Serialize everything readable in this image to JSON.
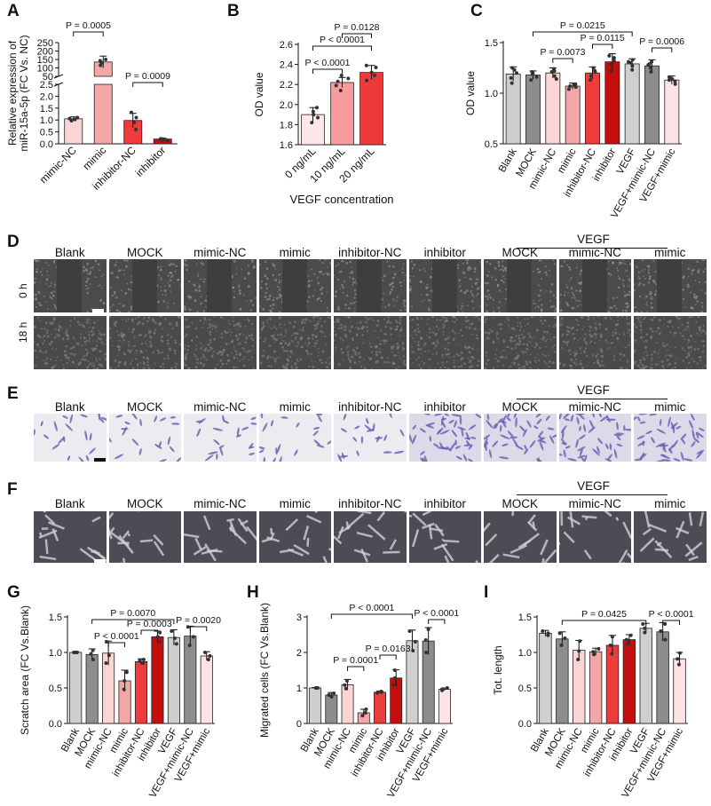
{
  "panel_letters": {
    "A": "A",
    "B": "B",
    "C": "C",
    "D": "D",
    "E": "E",
    "F": "F",
    "G": "G",
    "H": "H",
    "I": "I"
  },
  "colors": {
    "nc": "#fbd4d4",
    "mimic": "#f4a7a7",
    "inhibitor_nc": "#ee3b3b",
    "inhibitor": "#c40e0e",
    "blank": "#cfcfcf",
    "mock": "#8d8d8d",
    "b0": "#fde7e7",
    "b10": "#f69c9c",
    "b20": "#ee3a3a",
    "vegf_mimic": "#fde3e3"
  },
  "image_panels": {
    "columns": [
      "Blank",
      "MOCK",
      "mimic-NC",
      "mimic",
      "inhibitor-NC",
      "inhibitor",
      "MOCK",
      "mimic-NC",
      "mimic"
    ],
    "vegf_label": "VEGF",
    "D_rows": [
      "0 h",
      "18 h"
    ]
  },
  "chart_data": [
    {
      "id": "A",
      "type": "bar",
      "ylabel": "Relative expression of miR-15a-5p (FC Vs. NC)",
      "categories": [
        "mimic-NC",
        "mimic",
        "inhibitor-NC",
        "inhibitor"
      ],
      "values": [
        1.05,
        135,
        0.98,
        0.2
      ],
      "errors": [
        0.08,
        35,
        0.3,
        0.04
      ],
      "points": [
        [
          1.02,
          1.1,
          0.97,
          1.06
        ],
        [
          115,
          150,
          142,
          130
        ],
        [
          0.6,
          1.32,
          0.9,
          1.1
        ],
        [
          0.15,
          0.2,
          0.21,
          0.17
        ]
      ],
      "broken_axis": true,
      "ylim_lower": [
        0,
        2.5
      ],
      "yticks_lower": [
        "0.0",
        "0.5",
        "1.0",
        "1.5",
        "2.0",
        "2.5"
      ],
      "ylim_upper": [
        50,
        250
      ],
      "yticks_upper": [
        "50",
        "100",
        "150",
        "200",
        "250"
      ],
      "annotations": [
        {
          "text": "P = 0.0005",
          "from": 0,
          "to": 1
        },
        {
          "text": "P = 0.0009",
          "from": 2,
          "to": 3
        }
      ]
    },
    {
      "id": "B",
      "type": "bar",
      "ylabel": "OD value",
      "xlabel": "VEGF concentration",
      "categories": [
        "0 ng/mL",
        "10 ng/mL",
        "20 ng/mL"
      ],
      "values": [
        1.9,
        2.22,
        2.32
      ],
      "errors": [
        0.07,
        0.05,
        0.07
      ],
      "points": [
        [
          1.82,
          1.87,
          1.93,
          1.97,
          1.9
        ],
        [
          2.14,
          2.19,
          2.23,
          2.26,
          2.29
        ],
        [
          2.24,
          2.29,
          2.32,
          2.37,
          2.39
        ]
      ],
      "ylim": [
        1.6,
        2.6
      ],
      "yticks": [
        "1.6",
        "1.8",
        "2.0",
        "2.2",
        "2.4",
        "2.6"
      ],
      "annotations": [
        {
          "text": "P < 0.0001",
          "from": 0,
          "to": 1
        },
        {
          "text": "P < 0.0001",
          "from": 0,
          "to": 2
        },
        {
          "text": "P = 0.0128",
          "from": 1,
          "to": 2
        }
      ]
    },
    {
      "id": "C",
      "type": "bar",
      "ylabel": "OD value",
      "categories": [
        "Blank",
        "MOCK",
        "mimic-NC",
        "mimic",
        "inhibitor-NC",
        "inhibitor",
        "VEGF",
        "VEGF+mimic-NC",
        "VEGF+mimic"
      ],
      "values": [
        1.19,
        1.18,
        1.2,
        1.07,
        1.2,
        1.31,
        1.29,
        1.27,
        1.13
      ],
      "errors": [
        0.07,
        0.04,
        0.05,
        0.03,
        0.06,
        0.08,
        0.05,
        0.06,
        0.04
      ],
      "points": [
        [
          1.1,
          1.15,
          1.2,
          1.25,
          1.23
        ],
        [
          1.13,
          1.16,
          1.19,
          1.21,
          1.2
        ],
        [
          1.14,
          1.17,
          1.21,
          1.24,
          1.22
        ],
        [
          1.04,
          1.06,
          1.08,
          1.09,
          1.07
        ],
        [
          1.13,
          1.17,
          1.21,
          1.25,
          1.22
        ],
        [
          1.22,
          1.28,
          1.32,
          1.37,
          1.35
        ],
        [
          1.23,
          1.27,
          1.3,
          1.33,
          1.31
        ],
        [
          1.21,
          1.25,
          1.28,
          1.31,
          1.29
        ],
        [
          1.09,
          1.12,
          1.14,
          1.16,
          1.13
        ]
      ],
      "ylim": [
        0.5,
        1.5
      ],
      "yticks": [
        "0.5",
        "1.0",
        "1.5"
      ],
      "annotations": [
        {
          "text": "P = 0.0215",
          "from": 1,
          "to": 6
        },
        {
          "text": "P = 0.0115",
          "from": 4,
          "to": 5
        },
        {
          "text": "P = 0.0073",
          "from": 2,
          "to": 3
        },
        {
          "text": "P = 0.0006",
          "from": 7,
          "to": 8
        }
      ]
    },
    {
      "id": "G",
      "type": "bar",
      "ylabel": "Scratch area (FC Vs.Blank)",
      "categories": [
        "Blank",
        "MOCK",
        "mimic-NC",
        "mimic",
        "inhibitor-NC",
        "inhibitor",
        "VEGF",
        "VEGF+mimic-NC",
        "VEGF+mimic"
      ],
      "values": [
        1.0,
        0.97,
        0.99,
        0.6,
        0.87,
        1.22,
        1.21,
        1.23,
        0.95
      ],
      "errors": [
        0.01,
        0.08,
        0.17,
        0.15,
        0.04,
        0.08,
        0.11,
        0.14,
        0.06
      ],
      "points": [
        [
          1.0,
          1.0,
          1.0
        ],
        [
          0.9,
          0.98,
          1.03
        ],
        [
          0.85,
          0.96,
          1.15
        ],
        [
          0.48,
          0.6,
          0.72
        ],
        [
          0.85,
          0.88,
          0.9
        ],
        [
          1.15,
          1.22,
          1.28
        ],
        [
          1.12,
          1.2,
          1.3
        ],
        [
          1.1,
          1.22,
          1.36
        ],
        [
          0.9,
          0.95,
          1.0
        ]
      ],
      "ylim": [
        0,
        1.5
      ],
      "yticks": [
        "0.0",
        "0.5",
        "1.0",
        "1.5"
      ],
      "annotations": [
        {
          "text": "P = 0.0070",
          "from": 1,
          "to": 6
        },
        {
          "text": "P = 0.0003",
          "from": 4,
          "to": 5
        },
        {
          "text": "P < 0.0001",
          "from": 2,
          "to": 3
        },
        {
          "text": "P = 0.0020",
          "from": 7,
          "to": 8
        }
      ]
    },
    {
      "id": "H",
      "type": "bar",
      "ylabel": "Migrated cells (FC Vs.Blank)",
      "categories": [
        "Blank",
        "MOCK",
        "mimic-NC",
        "mimic",
        "inhibitor-NC",
        "inhibitor",
        "VEGF",
        "VEGF+mimic-NC",
        "VEGF+mimic"
      ],
      "values": [
        1.0,
        0.8,
        1.09,
        0.3,
        0.88,
        1.28,
        2.33,
        2.32,
        0.96
      ],
      "errors": [
        0.01,
        0.07,
        0.15,
        0.1,
        0.03,
        0.23,
        0.3,
        0.38,
        0.04
      ],
      "points": [
        [
          1.0,
          1.0,
          1.0
        ],
        [
          0.75,
          0.8,
          0.85
        ],
        [
          0.98,
          1.08,
          1.2
        ],
        [
          0.22,
          0.3,
          0.4
        ],
        [
          0.86,
          0.88,
          0.9
        ],
        [
          1.08,
          1.28,
          1.5
        ],
        [
          2.05,
          2.3,
          2.6
        ],
        [
          2.0,
          2.35,
          2.65
        ],
        [
          0.93,
          0.96,
          1.0
        ]
      ],
      "ylim": [
        0,
        3
      ],
      "yticks": [
        "0",
        "1",
        "2",
        "3"
      ],
      "annotations": [
        {
          "text": "P < 0.0001",
          "from": 1,
          "to": 6
        },
        {
          "text": "P = 0.0163",
          "from": 4,
          "to": 5
        },
        {
          "text": "P = 0.0001",
          "from": 2,
          "to": 3
        },
        {
          "text": "P < 0.0001",
          "from": 7,
          "to": 8
        }
      ]
    },
    {
      "id": "I",
      "type": "bar",
      "ylabel": "Tot. length",
      "categories": [
        "Blank",
        "MOCK",
        "mimic-NC",
        "mimic",
        "inhibitor-NC",
        "inhibitor",
        "VEGF",
        "VEGF+mimic-NC",
        "VEGF+mimic"
      ],
      "values": [
        1.27,
        1.19,
        1.03,
        1.01,
        1.1,
        1.18,
        1.34,
        1.29,
        0.91
      ],
      "errors": [
        0.04,
        0.1,
        0.14,
        0.05,
        0.14,
        0.07,
        0.07,
        0.13,
        0.09
      ],
      "points": [
        [
          1.24,
          1.27,
          1.3
        ],
        [
          1.1,
          1.2,
          1.27
        ],
        [
          0.9,
          1.02,
          1.16
        ],
        [
          0.97,
          1.01,
          1.05
        ],
        [
          0.98,
          1.1,
          1.22
        ],
        [
          1.12,
          1.18,
          1.24
        ],
        [
          1.28,
          1.34,
          1.4
        ],
        [
          1.18,
          1.3,
          1.4
        ],
        [
          0.83,
          0.91,
          0.99
        ]
      ],
      "ylim": [
        0,
        1.5
      ],
      "yticks": [
        "0.0",
        "0.5",
        "1.0",
        "1.5"
      ],
      "annotations": [
        {
          "text": "P = 0.0425",
          "from": 1,
          "to": 6
        },
        {
          "text": "P < 0.0001",
          "from": 7,
          "to": 8
        }
      ]
    }
  ]
}
